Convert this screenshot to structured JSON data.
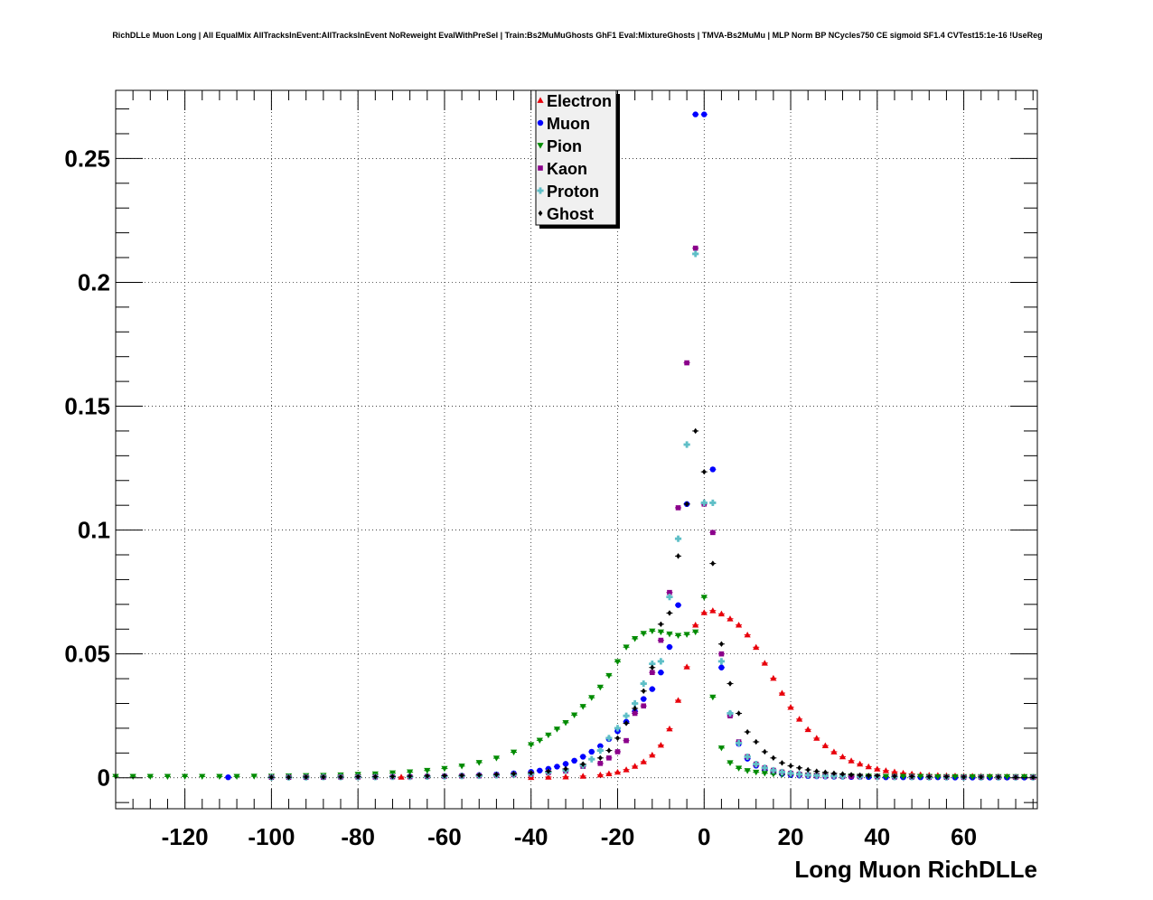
{
  "chart_data": {
    "type": "scatter",
    "title": "RichDLLe Muon Long | All EqualMix AllTracksInEvent:AllTracksInEvent NoReweight EvalWithPreSel | Train:Bs2MuMuGhosts GhF1 Eval:MixtureGhosts | TMVA-Bs2MuMu | MLP Norm BP NCycles750 CE sigmoid SF1.4 CVTest15:1e-16 !UseReg",
    "xlabel": "Long Muon RichDLLe",
    "ylabel": "",
    "xlim": [
      -136,
      77
    ],
    "ylim": [
      -0.0125,
      0.2775
    ],
    "xticks": [
      -120,
      -100,
      -80,
      -60,
      -40,
      -20,
      0,
      20,
      40,
      60
    ],
    "xtick_labels": [
      "-120",
      "-100",
      "-80",
      "-60",
      "-40",
      "-20",
      "0",
      "20",
      "40",
      "60"
    ],
    "yticks": [
      0,
      0.05,
      0.1,
      0.15,
      0.2,
      0.25
    ],
    "ytick_labels": [
      "0",
      "0.05",
      "0.1",
      "0.15",
      "0.2",
      "0.25"
    ],
    "grid": true,
    "legend_position": "top-center",
    "series": [
      {
        "name": "Electron",
        "marker": "triangle-up",
        "color": "#e8000b",
        "x": [
          -70,
          -40,
          -36,
          -32,
          -28,
          -24,
          -22,
          -20,
          -18,
          -16,
          -14,
          -12,
          -10,
          -8,
          -6,
          -4,
          -2,
          0,
          2,
          4,
          6,
          8,
          10,
          12,
          14,
          16,
          18,
          20,
          22,
          24,
          26,
          28,
          30,
          32,
          34,
          36,
          38,
          40,
          42,
          44,
          46,
          48,
          50,
          52,
          54,
          56,
          58,
          60,
          62,
          64,
          66,
          68,
          70,
          72,
          74,
          76
        ],
        "y": [
          0.0003,
          0.0002,
          0.0003,
          0.0004,
          0.0007,
          0.0012,
          0.0017,
          0.0023,
          0.0033,
          0.0047,
          0.0065,
          0.0092,
          0.0132,
          0.0198,
          0.0313,
          0.0448,
          0.0617,
          0.0667,
          0.0675,
          0.0662,
          0.0642,
          0.0617,
          0.0577,
          0.0527,
          0.0463,
          0.0402,
          0.0342,
          0.0285,
          0.0237,
          0.0195,
          0.016,
          0.013,
          0.0105,
          0.0085,
          0.0069,
          0.0056,
          0.0045,
          0.0036,
          0.0029,
          0.0024,
          0.0019,
          0.0016,
          0.0013,
          0.0011,
          0.001,
          0.0009,
          0.0008,
          0.0008,
          0.0007,
          0.0007,
          0.0006,
          0.0006,
          0.0005,
          0.0005,
          0.0005,
          0.0004
        ]
      },
      {
        "name": "Muon",
        "marker": "circle",
        "color": "#0000ff",
        "x": [
          -110,
          -100,
          -96,
          -92,
          -88,
          -84,
          -80,
          -76,
          -72,
          -68,
          -64,
          -60,
          -56,
          -52,
          -48,
          -44,
          -40,
          -38,
          -36,
          -34,
          -32,
          -30,
          -28,
          -26,
          -24,
          -22,
          -20,
          -18,
          -16,
          -14,
          -12,
          -10,
          -8,
          -6,
          -4,
          -2,
          0,
          2,
          4,
          6,
          8,
          10,
          12,
          14,
          16,
          18,
          20,
          22,
          24,
          26,
          28,
          30,
          32,
          34,
          36,
          38,
          40,
          42,
          44,
          46,
          48,
          50,
          52,
          54,
          56,
          58,
          60,
          62,
          64,
          66,
          68,
          70,
          72,
          74,
          76
        ],
        "y": [
          0.0002,
          0.0002,
          0.0002,
          0.0002,
          0.0002,
          0.0003,
          0.0003,
          0.0003,
          0.0004,
          0.0005,
          0.0006,
          0.0007,
          0.0009,
          0.0011,
          0.0014,
          0.0018,
          0.0024,
          0.0029,
          0.0036,
          0.0045,
          0.0056,
          0.0069,
          0.0085,
          0.0105,
          0.0128,
          0.0156,
          0.0188,
          0.0226,
          0.0268,
          0.0318,
          0.0358,
          0.0425,
          0.0528,
          0.0697,
          0.1105,
          0.2678,
          0.2678,
          0.1245,
          0.0445,
          0.0257,
          0.0137,
          0.0077,
          0.0049,
          0.0031,
          0.0021,
          0.0015,
          0.0011,
          0.0009,
          0.0007,
          0.0006,
          0.0005,
          0.0004,
          0.0004,
          0.0003,
          0.0003,
          0.0003,
          0.0003,
          0.0002,
          0.0002,
          0.0002,
          0.0002,
          0.0002,
          0.0002,
          0.0002,
          0.0001,
          0.0001,
          0.0001,
          0.0001,
          0.0001,
          0.0001,
          0.0001,
          0.0001,
          0.0001,
          0.0001,
          0.0001
        ]
      },
      {
        "name": "Pion",
        "marker": "triangle-down",
        "color": "#008b00",
        "x": [
          -136,
          -132,
          -128,
          -124,
          -120,
          -116,
          -112,
          -108,
          -104,
          -100,
          -96,
          -92,
          -88,
          -84,
          -80,
          -76,
          -72,
          -68,
          -64,
          -60,
          -56,
          -52,
          -48,
          -44,
          -40,
          -38,
          -36,
          -34,
          -32,
          -30,
          -28,
          -26,
          -24,
          -22,
          -20,
          -18,
          -16,
          -14,
          -12,
          -10,
          -8,
          -6,
          -4,
          -2,
          0,
          2,
          4,
          6,
          8,
          10,
          12,
          14,
          16,
          18,
          20,
          22,
          24,
          26,
          28,
          30,
          32,
          34,
          36,
          38,
          40,
          42,
          44,
          46,
          48,
          50,
          52,
          54,
          56,
          58,
          60,
          62,
          64,
          66,
          68,
          70,
          72,
          74,
          76
        ],
        "y": [
          0.0005,
          0.0005,
          0.0005,
          0.0005,
          0.0005,
          0.0005,
          0.0005,
          0.0005,
          0.0006,
          0.0006,
          0.0007,
          0.0008,
          0.0009,
          0.0011,
          0.0013,
          0.0015,
          0.0019,
          0.0023,
          0.0029,
          0.0037,
          0.0047,
          0.0061,
          0.0079,
          0.0103,
          0.0133,
          0.0151,
          0.0172,
          0.0196,
          0.0222,
          0.0253,
          0.0287,
          0.0323,
          0.0365,
          0.0412,
          0.0468,
          0.0527,
          0.0561,
          0.0582,
          0.0592,
          0.0588,
          0.058,
          0.0574,
          0.0578,
          0.0588,
          0.0728,
          0.0325,
          0.012,
          0.006,
          0.0038,
          0.0028,
          0.0022,
          0.0018,
          0.0015,
          0.0013,
          0.0012,
          0.0011,
          0.001,
          0.0009,
          0.0008,
          0.0008,
          0.0007,
          0.0007,
          0.0006,
          0.0006,
          0.0006,
          0.0005,
          0.0005,
          0.0005,
          0.0005,
          0.0005,
          0.0005,
          0.0004,
          0.0004,
          0.0004,
          0.0004,
          0.0004,
          0.0004,
          0.0004,
          0.0004,
          0.0004,
          0.0004,
          0.0004,
          0.0004
        ]
      },
      {
        "name": "Kaon",
        "marker": "square",
        "color": "#8b008b",
        "x": [
          -100,
          -96,
          -92,
          -88,
          -84,
          -80,
          -76,
          -72,
          -68,
          -64,
          -60,
          -56,
          -52,
          -48,
          -44,
          -40,
          -36,
          -32,
          -28,
          -24,
          -22,
          -20,
          -18,
          -16,
          -14,
          -12,
          -10,
          -8,
          -6,
          -4,
          -2,
          0,
          2,
          4,
          6,
          8,
          10,
          12,
          14,
          16,
          18,
          20,
          22,
          24,
          26,
          28,
          30,
          32,
          34,
          36,
          40,
          44,
          48,
          52,
          56,
          60,
          64,
          68,
          72,
          76
        ],
        "y": [
          0.0002,
          0.0002,
          0.0002,
          0.0002,
          0.0003,
          0.0003,
          0.0003,
          0.0004,
          0.0004,
          0.0005,
          0.0006,
          0.0007,
          0.0008,
          0.001,
          0.0012,
          0.0015,
          0.0021,
          0.0027,
          0.0046,
          0.0058,
          0.008,
          0.0105,
          0.015,
          0.026,
          0.029,
          0.0425,
          0.0555,
          0.0748,
          0.109,
          0.1675,
          0.2138,
          0.1105,
          0.099,
          0.05,
          0.025,
          0.0145,
          0.0085,
          0.0055,
          0.004,
          0.003,
          0.0023,
          0.0018,
          0.0014,
          0.0011,
          0.0009,
          0.0008,
          0.0007,
          0.0006,
          0.0005,
          0.0005,
          0.0004,
          0.0003,
          0.0003,
          0.0002,
          0.0002,
          0.0002,
          0.0002,
          0.0002,
          0.0002,
          0.0002
        ]
      },
      {
        "name": "Proton",
        "marker": "cross",
        "color": "#5fbfc7",
        "x": [
          -100,
          -96,
          -92,
          -88,
          -84,
          -80,
          -76,
          -72,
          -68,
          -64,
          -60,
          -56,
          -52,
          -48,
          -44,
          -40,
          -36,
          -32,
          -28,
          -26,
          -24,
          -22,
          -20,
          -18,
          -16,
          -14,
          -12,
          -10,
          -8,
          -6,
          -4,
          -2,
          0,
          2,
          4,
          6,
          8,
          10,
          12,
          14,
          16,
          18,
          20,
          22,
          24,
          26,
          28,
          30,
          32,
          36,
          40,
          44,
          48,
          52,
          56,
          60,
          64,
          68,
          72,
          76
        ],
        "y": [
          0.0002,
          0.0002,
          0.0002,
          0.0003,
          0.0003,
          0.0003,
          0.0003,
          0.0004,
          0.0004,
          0.0005,
          0.0006,
          0.0007,
          0.0008,
          0.001,
          0.0013,
          0.0016,
          0.0022,
          0.003,
          0.005,
          0.0075,
          0.011,
          0.016,
          0.02,
          0.025,
          0.03,
          0.038,
          0.046,
          0.047,
          0.073,
          0.0965,
          0.1345,
          0.2115,
          0.111,
          0.111,
          0.047,
          0.026,
          0.014,
          0.0085,
          0.0055,
          0.004,
          0.003,
          0.0023,
          0.0018,
          0.0014,
          0.0011,
          0.0009,
          0.0008,
          0.0007,
          0.0006,
          0.0005,
          0.0004,
          0.0003,
          0.0003,
          0.0002,
          0.0002,
          0.0002,
          0.0002,
          0.0002,
          0.0002,
          0.0002
        ]
      },
      {
        "name": "Ghost",
        "marker": "diamond",
        "color": "#000000",
        "x": [
          -100,
          -96,
          -92,
          -88,
          -84,
          -80,
          -76,
          -72,
          -68,
          -64,
          -60,
          -56,
          -52,
          -48,
          -44,
          -40,
          -36,
          -32,
          -28,
          -24,
          -22,
          -20,
          -18,
          -16,
          -14,
          -12,
          -10,
          -8,
          -6,
          -4,
          -2,
          0,
          2,
          4,
          6,
          8,
          10,
          12,
          14,
          16,
          18,
          20,
          22,
          24,
          26,
          28,
          30,
          32,
          34,
          36,
          38,
          40,
          44,
          48,
          52,
          56,
          60,
          64,
          68,
          72,
          76
        ],
        "y": [
          0.0002,
          0.0002,
          0.0003,
          0.0003,
          0.0003,
          0.0004,
          0.0004,
          0.0005,
          0.0006,
          0.0007,
          0.0008,
          0.0009,
          0.0011,
          0.0013,
          0.0016,
          0.002,
          0.0026,
          0.0036,
          0.0055,
          0.008,
          0.011,
          0.016,
          0.022,
          0.028,
          0.035,
          0.0445,
          0.062,
          0.0665,
          0.0895,
          0.1105,
          0.14,
          0.1235,
          0.0865,
          0.054,
          0.038,
          0.026,
          0.0185,
          0.0145,
          0.0105,
          0.008,
          0.006,
          0.0048,
          0.004,
          0.0032,
          0.0026,
          0.0022,
          0.0018,
          0.0015,
          0.0012,
          0.001,
          0.0009,
          0.0008,
          0.0006,
          0.0005,
          0.0004,
          0.0004,
          0.0003,
          0.0003,
          0.0003,
          0.0002,
          0.0002
        ]
      }
    ]
  }
}
